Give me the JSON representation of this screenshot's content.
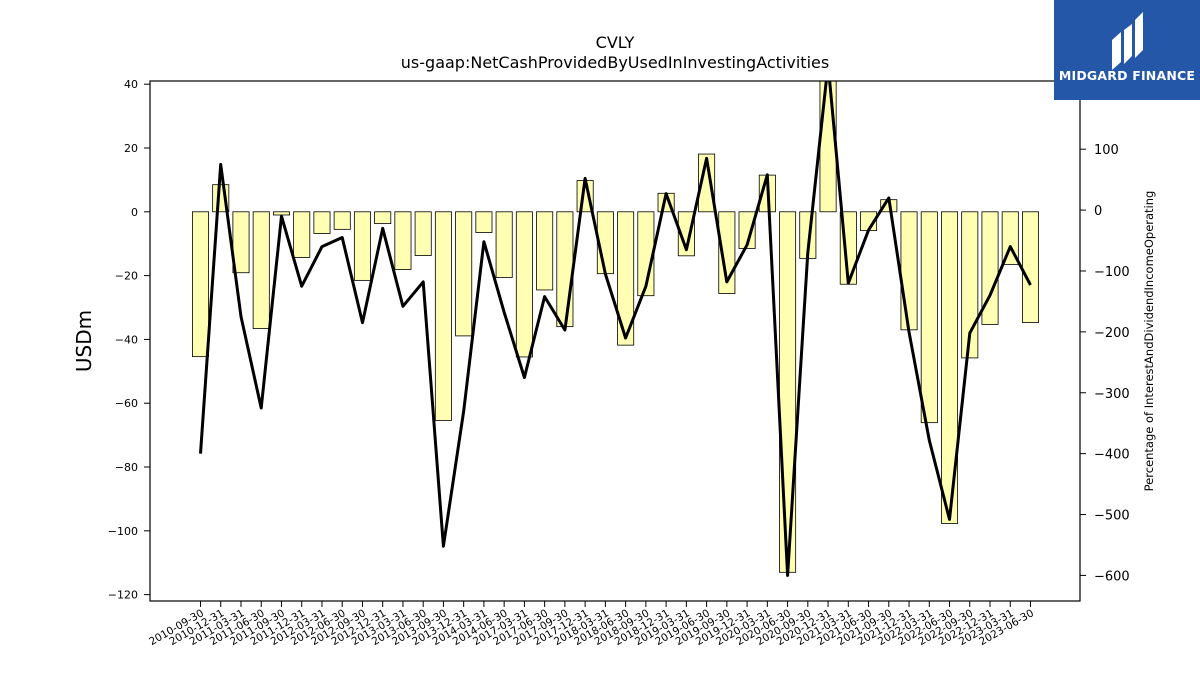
{
  "brand": {
    "name": "MIDGARD FINANCE",
    "color": "#2457a8",
    "icon": "midgard-finance-logo-icon"
  },
  "chart_data": {
    "type": "bar",
    "title": "CVLY",
    "subtitle": "us-gaap:NetCashProvidedByUsedInInvestingActivities",
    "ylabel": "USDm",
    "y2label": "Percentage of InterestAndDividendIncomeOperating",
    "ylim": [
      -122,
      41
    ],
    "y2lim": [
      -642,
      212
    ],
    "y_ticks": [
      40,
      20,
      0,
      -20,
      -40,
      -60,
      -80,
      -100,
      -120
    ],
    "y2_ticks": [
      100,
      0,
      -100,
      -200,
      -300,
      -400,
      -500,
      -600
    ],
    "bar_color": "#ffffb3",
    "line_color": "#000000",
    "categories": [
      "2010-09-30",
      "2010-12-31",
      "2011-03-31",
      "2011-06-30",
      "2011-09-30",
      "2011-12-31",
      "2012-03-31",
      "2012-06-30",
      "2012-09-30",
      "2012-12-31",
      "2013-03-31",
      "2013-06-30",
      "2013-09-30",
      "2013-12-31",
      "2014-03-31",
      "2014-06-30",
      "2017-03-31",
      "2017-06-30",
      "2017-09-30",
      "2017-12-31",
      "2018-03-31",
      "2018-06-30",
      "2018-09-30",
      "2018-12-31",
      "2019-03-31",
      "2019-06-30",
      "2019-09-30",
      "2019-12-31",
      "2020-03-31",
      "2020-06-30",
      "2020-09-30",
      "2020-12-31",
      "2021-03-31",
      "2021-06-30",
      "2021-09-30",
      "2021-12-31",
      "2022-03-31",
      "2022-06-30",
      "2022-09-30",
      "2022-12-31",
      "2023-03-31",
      "2023-06-30"
    ],
    "series": [
      {
        "axis": "left",
        "type": "bar",
        "values": [
          -45.4,
          8.5,
          -19.1,
          -36.6,
          -1.0,
          -14.3,
          -6.8,
          -5.5,
          -21.5,
          -3.7,
          -18.1,
          -13.7,
          -65.4,
          -38.9,
          -6.5,
          -20.6,
          -45.5,
          -24.5,
          -36.0,
          9.8,
          -19.4,
          -41.8,
          -26.3,
          5.8,
          -13.8,
          18.1,
          -25.6,
          -11.5,
          11.5,
          -113.0,
          -14.6,
          41.0,
          -22.7,
          -5.9,
          3.8,
          -37.0,
          -66.1,
          -97.7,
          -45.8,
          -35.3,
          -16.5,
          -34.7
        ]
      },
      {
        "axis": "right",
        "type": "line",
        "values": [
          -400,
          75,
          -175,
          -325,
          -10,
          -125,
          -60,
          -45,
          -185,
          -30,
          -158,
          -118,
          -552,
          -330,
          -52,
          -168,
          -275,
          -142,
          -197,
          52,
          -105,
          -210,
          -125,
          27,
          -65,
          85,
          -118,
          -57,
          58,
          -600,
          -70,
          240,
          -120,
          -33,
          20,
          -200,
          -378,
          -508,
          -202,
          -140,
          -60,
          -123
        ]
      }
    ]
  }
}
